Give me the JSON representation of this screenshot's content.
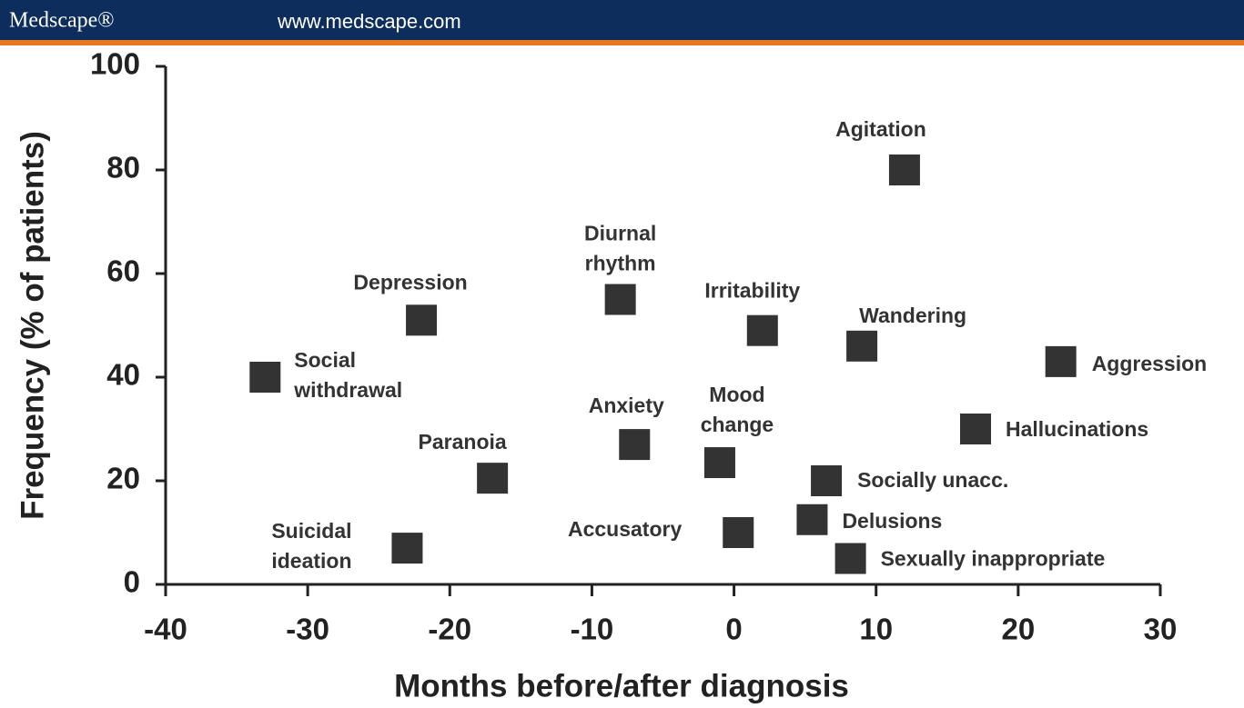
{
  "header": {
    "brand": "Medscape®",
    "url": "www.medscape.com"
  },
  "chart_data": {
    "type": "scatter",
    "x_label": "Months before/after diagnosis",
    "y_label": "Frequency (% of patients)",
    "xlim": [
      -40,
      30
    ],
    "ylim": [
      0,
      100
    ],
    "xticks": [
      -40,
      -30,
      -20,
      -10,
      0,
      10,
      20,
      30
    ],
    "yticks": [
      0,
      20,
      40,
      60,
      80,
      100
    ],
    "color": "#333333",
    "labels": [
      [
        "Social",
        "withdrawal"
      ],
      [
        "Depression"
      ],
      [
        "Diurnal",
        "rhythm"
      ],
      [
        "Irritability"
      ],
      [
        "Agitation"
      ],
      [
        "Wandering"
      ],
      [
        "Aggression"
      ],
      [
        "Hallucinations"
      ],
      [
        "Anxiety"
      ],
      [
        "Mood",
        "change"
      ],
      [
        "Paranoia"
      ],
      [
        "Socially unacc."
      ],
      [
        "Delusions"
      ],
      [
        "Accusatory"
      ],
      [
        "Suicidal",
        "ideation"
      ],
      [
        "Sexually inappropriate"
      ]
    ],
    "x": [
      -33,
      -22,
      -8,
      2,
      12,
      9,
      23,
      17,
      -7,
      -1,
      -17,
      6.5,
      5.5,
      0.3,
      -23,
      8.2
    ],
    "values": [
      40,
      51,
      55,
      49,
      80,
      46,
      43,
      30,
      27,
      23.5,
      20.5,
      20,
      12.5,
      10,
      7,
      5
    ]
  }
}
